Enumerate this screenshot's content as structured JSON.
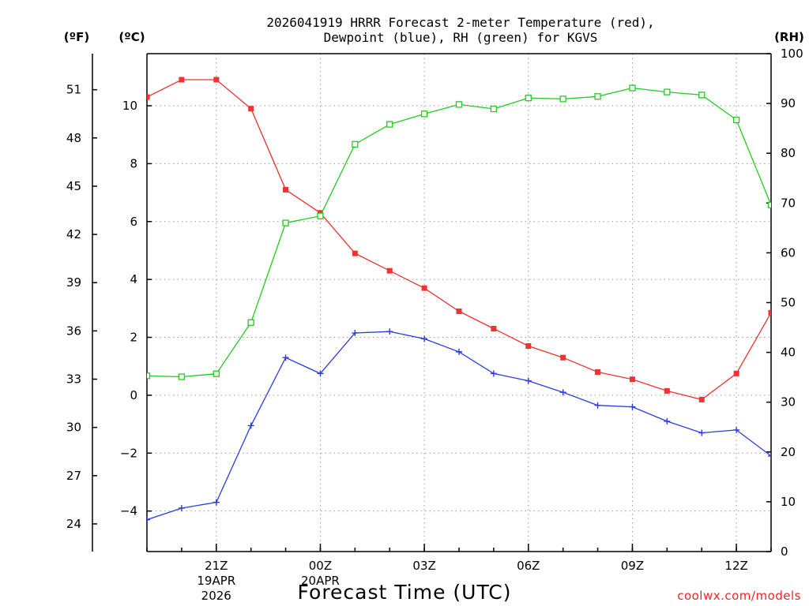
{
  "chart_data": {
    "type": "line",
    "title_line1": "2026041919 HRRR Forecast 2-meter Temperature (red),",
    "title_line2": "Dewpoint (blue), RH (green) for KGVS",
    "xlabel": "Forecast Time (UTC)",
    "credit": "coolwx.com/models",
    "units": {
      "fahrenheit": "(ºF)",
      "celsius": "(ºC)",
      "rh": "(RH)"
    },
    "x_ticks": [
      {
        "hour": 2,
        "label": "21Z",
        "date": "19APR",
        "year": "2026"
      },
      {
        "hour": 5,
        "label": "00Z",
        "date": "20APR",
        "year": ""
      },
      {
        "hour": 8,
        "label": "03Z",
        "date": "",
        "year": ""
      },
      {
        "hour": 11,
        "label": "06Z",
        "date": "",
        "year": ""
      },
      {
        "hour": 14,
        "label": "09Z",
        "date": "",
        "year": ""
      },
      {
        "hour": 17,
        "label": "12Z",
        "date": "",
        "year": ""
      }
    ],
    "x_range": [
      0,
      18
    ],
    "celsius_range": [
      -5.4,
      11.8
    ],
    "celsius_ticks": [
      -4,
      -2,
      0,
      2,
      4,
      6,
      8,
      10
    ],
    "fahrenheit_ticks": [
      24,
      27,
      30,
      33,
      36,
      39,
      42,
      45,
      48,
      51
    ],
    "rh_range": [
      0,
      100
    ],
    "rh_ticks": [
      0,
      10,
      20,
      30,
      40,
      50,
      60,
      70,
      80,
      90,
      100
    ],
    "x": [
      0,
      1,
      2,
      3,
      4,
      5,
      6,
      7,
      8,
      9,
      10,
      11,
      12,
      13,
      14,
      15,
      16,
      17,
      18
    ],
    "series": [
      {
        "name": "2-meter Temperature",
        "axis": "celsius",
        "color": "#f03232",
        "marker": "filled-square",
        "values": [
          10.3,
          10.9,
          10.9,
          9.9,
          7.1,
          6.3,
          4.9,
          4.3,
          3.7,
          2.9,
          2.3,
          1.7,
          1.3,
          0.8,
          0.55,
          0.15,
          -0.15,
          0.75,
          2.85
        ]
      },
      {
        "name": "Dewpoint",
        "axis": "celsius",
        "color": "#2a3ae0",
        "marker": "plus",
        "values": [
          -4.3,
          -3.9,
          -3.7,
          -1.05,
          1.3,
          0.75,
          2.15,
          2.2,
          1.95,
          1.5,
          0.75,
          0.5,
          0.1,
          -0.35,
          -0.4,
          -0.9,
          -1.3,
          -1.2,
          -2.1
        ]
      },
      {
        "name": "RH",
        "axis": "rh",
        "color": "#22cc22",
        "marker": "open-square",
        "values": [
          35.3,
          35.1,
          35.7,
          46,
          66,
          67.4,
          81.8,
          85.8,
          87.9,
          89.8,
          88.9,
          91.1,
          90.9,
          91.4,
          93.1,
          92.3,
          91.7,
          86.7,
          69.6
        ]
      }
    ]
  }
}
